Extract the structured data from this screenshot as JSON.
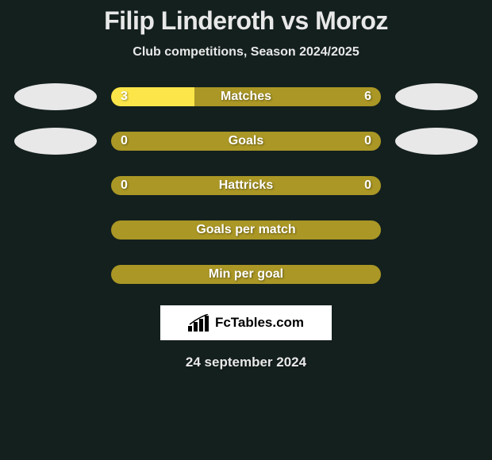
{
  "title": "Filip Linderoth vs Moroz",
  "subtitle": "Club competitions, Season 2024/2025",
  "colors": {
    "background": "#14201e",
    "bar_base": "#aa9725",
    "bar_fill": "#fbe549",
    "text_light": "#e8e8e8",
    "oval": "#e8e8e8",
    "brand_bg": "#ffffff",
    "brand_text": "#000000"
  },
  "fontsize": {
    "title": 32,
    "subtitle": 16,
    "bar_label": 16,
    "bar_value": 16,
    "date": 17,
    "brand": 17
  },
  "rows": [
    {
      "label": "Matches",
      "left": "3",
      "right": "6",
      "left_fill_pct": 31,
      "show_values": true,
      "ovals": true
    },
    {
      "label": "Goals",
      "left": "0",
      "right": "0",
      "left_fill_pct": 0,
      "show_values": true,
      "ovals": true
    },
    {
      "label": "Hattricks",
      "left": "0",
      "right": "0",
      "left_fill_pct": 0,
      "show_values": true,
      "ovals": false
    },
    {
      "label": "Goals per match",
      "left": "",
      "right": "",
      "left_fill_pct": 0,
      "show_values": false,
      "ovals": false
    },
    {
      "label": "Min per goal",
      "left": "",
      "right": "",
      "left_fill_pct": 0,
      "show_values": false,
      "ovals": false
    }
  ],
  "brand": {
    "text": "FcTables.com",
    "icon": "bars-icon"
  },
  "date": "24 september 2024"
}
